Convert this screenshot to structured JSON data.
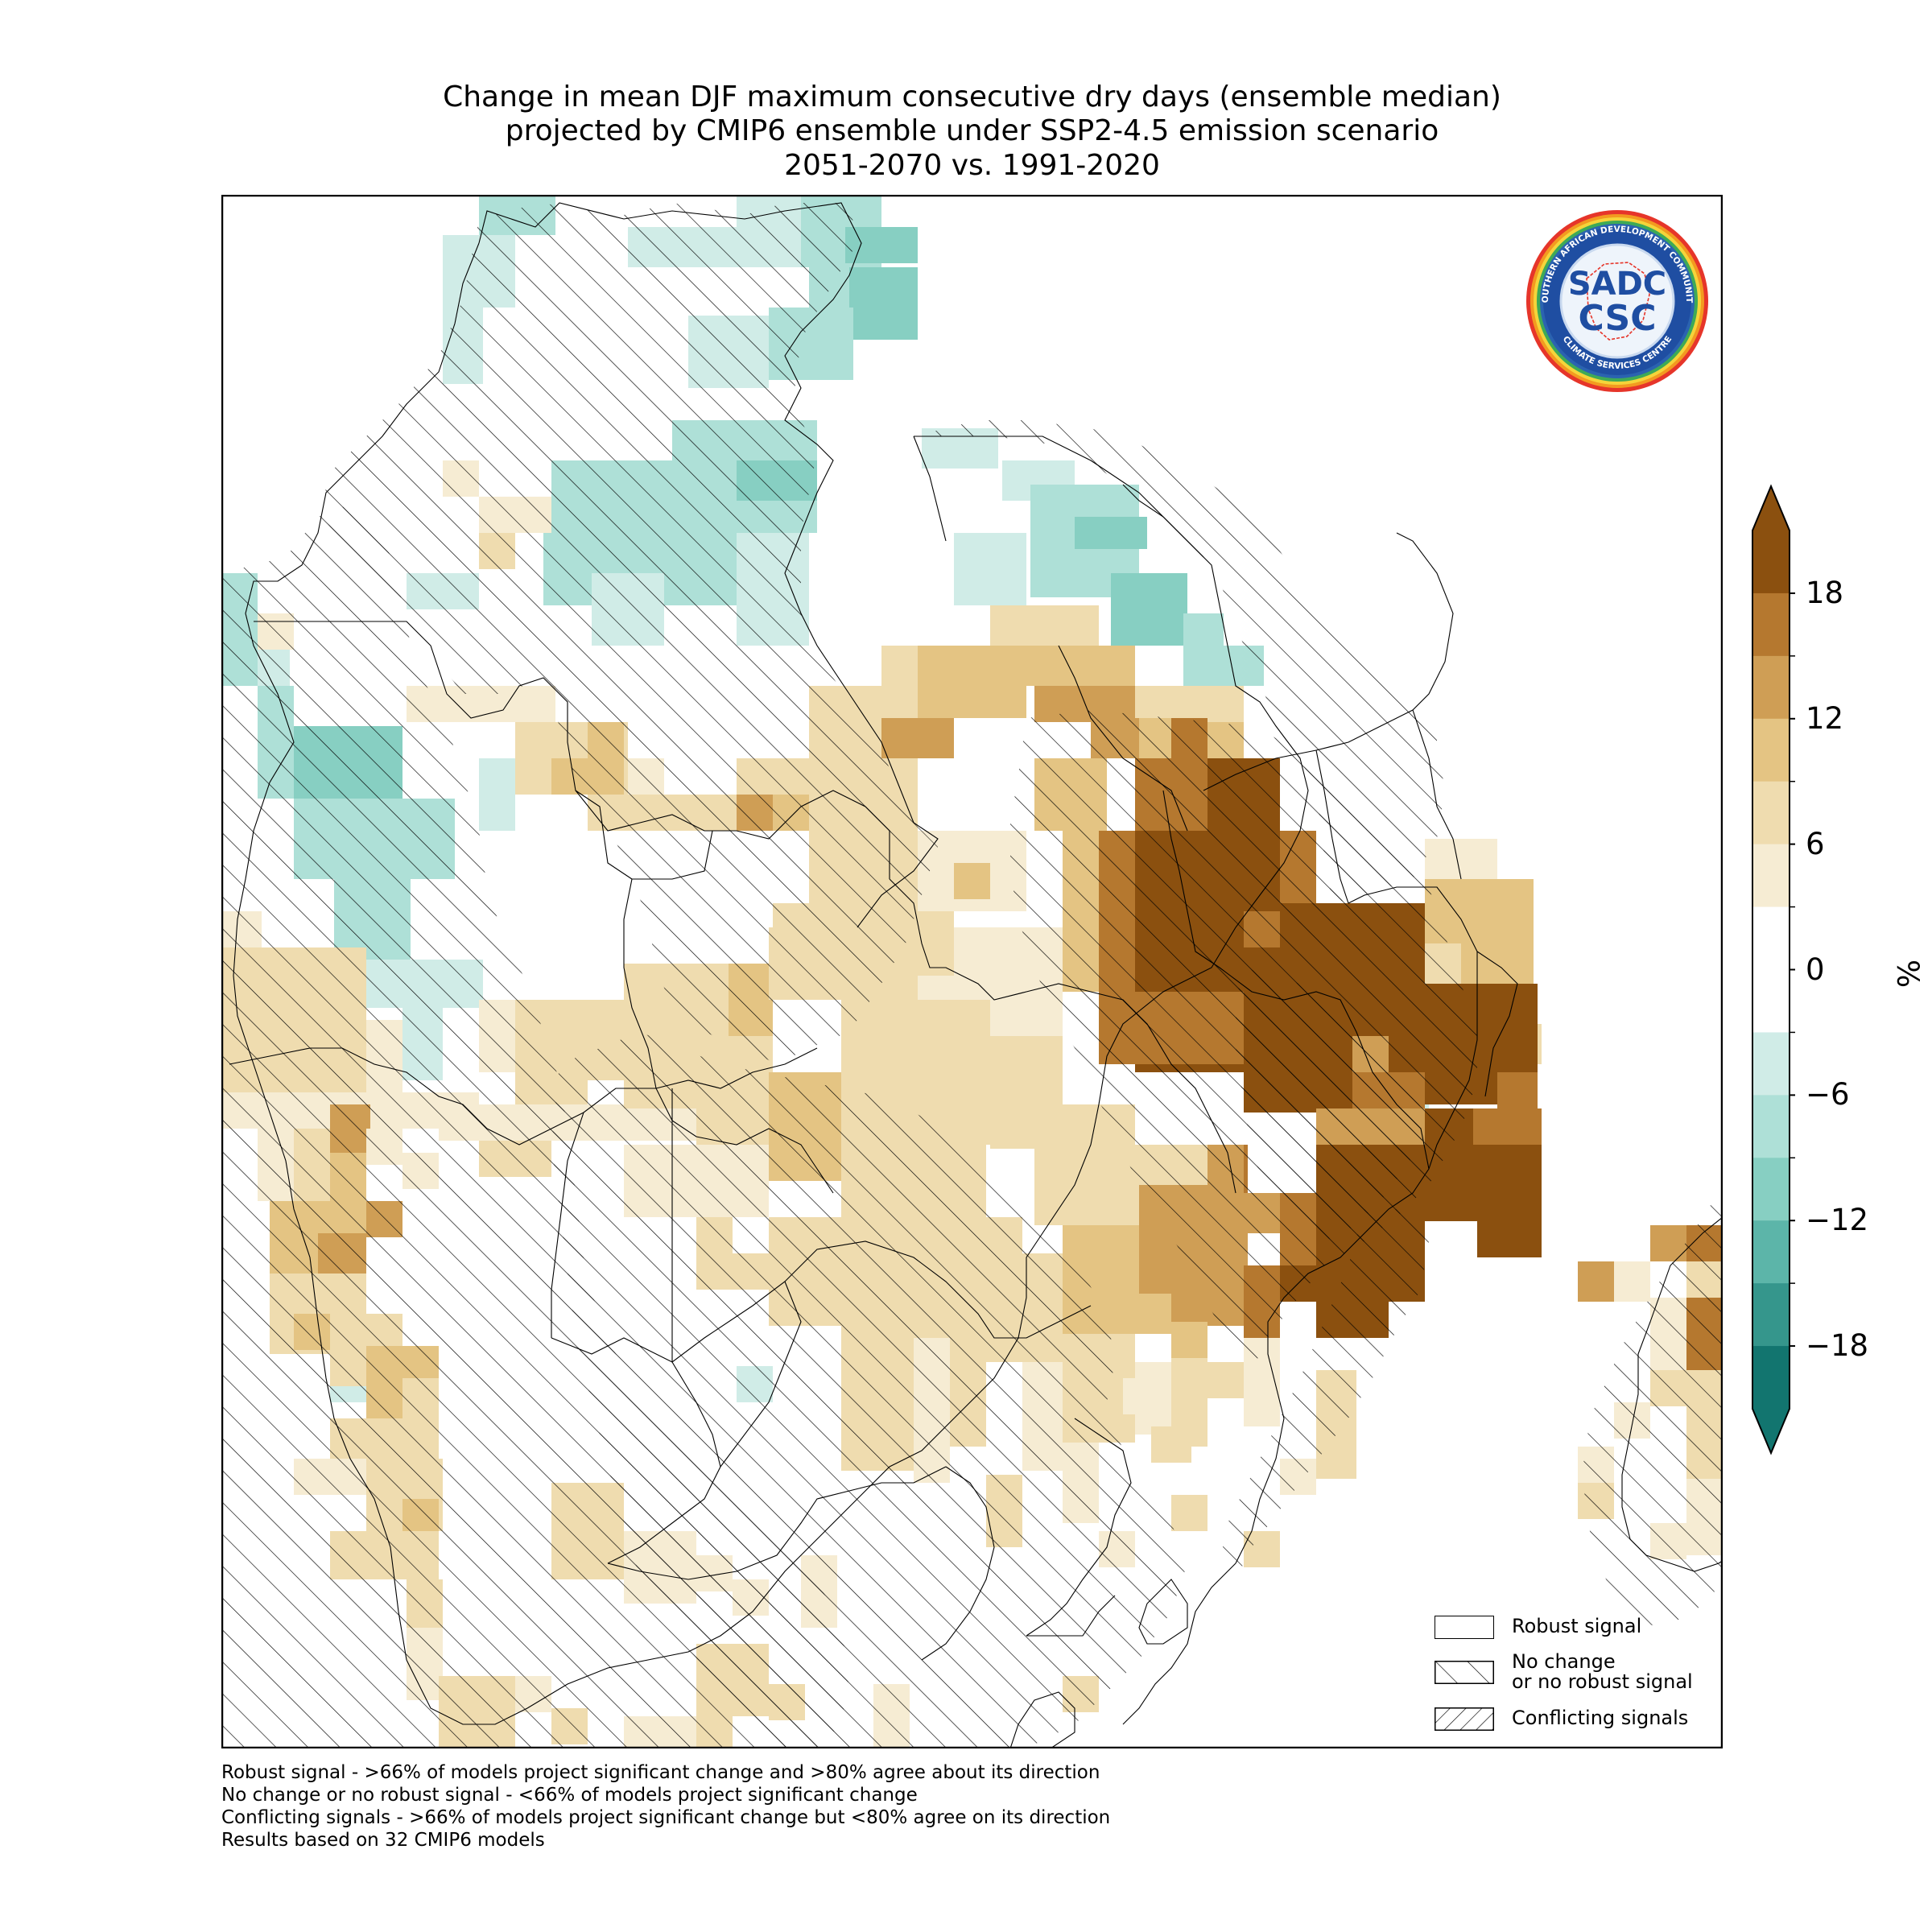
{
  "title": {
    "line1": "Change in mean DJF maximum consecutive dry days (ensemble median)",
    "line2": "projected by CMIP6 ensemble under SSP2-4.5 emission scenario",
    "line3": "2051-2070 vs. 1991-2020"
  },
  "logo": {
    "ring_text_top": "SOUTHERN AFRICAN DEVELOPMENT COMMUNITY",
    "ring_text_bottom": "CLIMATE SERVICES CENTRE",
    "mark_top": "SADC",
    "mark_bottom": "CSC"
  },
  "legend": {
    "robust": "Robust signal",
    "no_change_line1": "No change",
    "no_change_line2": "or no robust signal",
    "conflicting": "Conflicting signals"
  },
  "notes": {
    "line1": "Robust signal - >66% of models project significant change and >80% agree about its direction",
    "line2": "No change or no robust signal - <66% of models project significant change",
    "line3": "Conflicting signals - >66% of models project significant change but <80% agree on its direction",
    "line4": "Results based on 32 CMIP6 models"
  },
  "colorbar": {
    "unit": "%",
    "ticks": [
      {
        "value": 18,
        "label": "18"
      },
      {
        "value": 12,
        "label": "12"
      },
      {
        "value": 6,
        "label": "6"
      },
      {
        "value": 0,
        "label": "0"
      },
      {
        "value": -6,
        "label": "−6"
      },
      {
        "value": -12,
        "label": "−12"
      },
      {
        "value": -18,
        "label": "−18"
      }
    ],
    "range": [
      -21,
      21
    ],
    "extend": "both",
    "colors_top_to_bottom": [
      "#8b500f",
      "#b5782f",
      "#cf9e55",
      "#e4c483",
      "#efdcaf",
      "#f6ecd3",
      "#ffffff",
      "#ffffff",
      "#d0ece7",
      "#aee0d7",
      "#87cfc2",
      "#5cb5a9",
      "#35968c",
      "#12756f"
    ],
    "over_color": "#8b500f",
    "under_color": "#12756f"
  }
}
